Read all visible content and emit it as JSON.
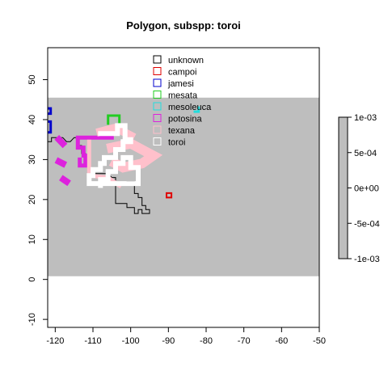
{
  "chart_data": {
    "type": "map-polygon",
    "title": "Polygon, subspp: toroi",
    "xlim": [
      -122,
      -50
    ],
    "ylim": [
      -12,
      58
    ],
    "x_ticks": [
      -120,
      -110,
      -100,
      -90,
      -80,
      -70,
      -60,
      -50
    ],
    "y_ticks": [
      -10,
      0,
      10,
      20,
      30,
      40,
      50
    ],
    "background": {
      "color": "#bebebe",
      "ymin": 0.8,
      "ymax": 45.5
    },
    "legend": {
      "position": "top-center",
      "entries": [
        {
          "name": "unknown",
          "color": "#000000"
        },
        {
          "name": "campoi",
          "color": "#df0000"
        },
        {
          "name": "jamesi",
          "color": "#0000cc"
        },
        {
          "name": "mesata",
          "color": "#22cc22"
        },
        {
          "name": "mesoleuca",
          "color": "#22dddd"
        },
        {
          "name": "potosina",
          "color": "#dd22dd"
        },
        {
          "name": "texana",
          "color": "#ffc0cb"
        },
        {
          "name": "toroi",
          "color": "#ffffff"
        }
      ]
    },
    "colorbar": {
      "color": "#bebebe",
      "ticks": [
        {
          "label": "1e-03",
          "value": 0.001
        },
        {
          "label": "5e-04",
          "value": 0.0005
        },
        {
          "label": "0e+00",
          "value": 0
        },
        {
          "label": "-5e-04",
          "value": -0.0005
        },
        {
          "label": "-1e-03",
          "value": -0.001
        }
      ]
    },
    "series": [
      {
        "name": "unknown",
        "color": "#000000",
        "width": 1,
        "points": [
          [
            -122,
            34.5
          ],
          [
            -121,
            34.5
          ],
          [
            -121,
            35.5
          ],
          [
            -119,
            35.5
          ],
          [
            -118,
            35.5
          ],
          [
            -117,
            34.5
          ],
          [
            -116,
            34.5
          ],
          [
            -115,
            35.5
          ],
          [
            -114,
            35.5
          ],
          [
            -114,
            33.5
          ],
          [
            -113,
            33.5
          ],
          [
            -113,
            31.5
          ],
          [
            -112,
            31.5
          ],
          [
            -112,
            29.5
          ],
          [
            -111,
            29.5
          ],
          [
            -111,
            27.5
          ],
          [
            -110,
            27.5
          ],
          [
            -110,
            26.5
          ],
          [
            -108,
            26.5
          ],
          [
            -106,
            26.5
          ],
          [
            -105,
            25.5
          ],
          [
            -104,
            25.5
          ],
          [
            -104,
            23.5
          ],
          [
            -104,
            22.5
          ],
          [
            -104,
            19
          ],
          [
            -101,
            19
          ],
          [
            -101,
            18
          ],
          [
            -99,
            18
          ],
          [
            -99,
            16.5
          ],
          [
            -98,
            16.5
          ],
          [
            -98,
            17.5
          ],
          [
            -97,
            17.5
          ],
          [
            -97,
            16.5
          ],
          [
            -95,
            16.5
          ],
          [
            -95,
            17.5
          ],
          [
            -96,
            17.5
          ],
          [
            -96,
            18.5
          ],
          [
            -97,
            18.5
          ],
          [
            -97,
            20.5
          ],
          [
            -98,
            20.5
          ],
          [
            -98,
            21.5
          ],
          [
            -99,
            21.5
          ],
          [
            -99,
            24.5
          ],
          [
            -100,
            24.5
          ],
          [
            -101,
            24.5
          ]
        ]
      },
      {
        "name": "campoi",
        "color": "#df0000",
        "width": 2,
        "points": [
          [
            -90.5,
            20.5
          ],
          [
            -89.2,
            20.5
          ],
          [
            -89.2,
            21.6
          ],
          [
            -90.5,
            21.6
          ],
          [
            -90.5,
            20.5
          ]
        ]
      },
      {
        "name": "jamesi",
        "color": "#0000cc",
        "width": 3,
        "points": [
          [
            -122,
            41.5
          ],
          [
            -121.2,
            41.5
          ],
          [
            -121.2,
            42.8
          ],
          [
            -122,
            42.8
          ]
        ]
      },
      {
        "name": "jamesi",
        "color": "#0000cc",
        "width": 3,
        "points": [
          [
            -122,
            36.8
          ],
          [
            -121.2,
            36.8
          ],
          [
            -121.2,
            39.5
          ],
          [
            -122,
            39.5
          ]
        ]
      },
      {
        "name": "mesata",
        "color": "#22cc22",
        "width": 3,
        "points": [
          [
            -106,
            39
          ],
          [
            -106,
            41
          ],
          [
            -103,
            41
          ],
          [
            -103,
            39
          ]
        ]
      },
      {
        "name": "mesoleuca",
        "color": "#22dddd",
        "width": 3,
        "points": [
          [
            -83,
            42
          ],
          [
            -82,
            42
          ],
          [
            -82,
            43
          ]
        ]
      },
      {
        "name": "potosina",
        "color": "#dd22dd",
        "width": 5,
        "points": [
          [
            -105,
            35.5
          ],
          [
            -114,
            35.5
          ],
          [
            -114,
            33
          ],
          [
            -112.5,
            33
          ],
          [
            -112.5,
            31
          ],
          [
            -112,
            31
          ],
          [
            -112,
            28.5
          ],
          [
            -113.5,
            28.5
          ],
          [
            -113.5,
            30
          ]
        ]
      },
      {
        "name": "potosina",
        "color": "#dd22dd",
        "width": 8,
        "points": [
          [
            -119,
            35
          ],
          [
            -118,
            34
          ]
        ]
      },
      {
        "name": "potosina",
        "color": "#dd22dd",
        "width": 8,
        "points": [
          [
            -119,
            29.5
          ],
          [
            -118,
            29
          ]
        ]
      },
      {
        "name": "potosina",
        "color": "#dd22dd",
        "width": 8,
        "points": [
          [
            -117.8,
            25
          ],
          [
            -117,
            24.5
          ]
        ]
      },
      {
        "name": "texana",
        "color": "#ffc0cb",
        "width": 5,
        "points": [
          [
            -111,
            34.5
          ],
          [
            -111,
            26
          ],
          [
            -106,
            25.5
          ],
          [
            -103,
            23.5
          ]
        ]
      },
      {
        "name": "texana",
        "color": "#ffc0cb",
        "width": 12,
        "points": [
          [
            -105,
            33
          ],
          [
            -100,
            34
          ],
          [
            -96,
            32
          ],
          [
            -94,
            31
          ],
          [
            -97,
            29
          ],
          [
            -102,
            28
          ],
          [
            -104,
            29
          ]
        ]
      },
      {
        "name": "texana",
        "color": "#ffc0cb",
        "width": 10,
        "points": [
          [
            -108,
            37
          ],
          [
            -104,
            38
          ],
          [
            -100,
            36
          ]
        ]
      },
      {
        "name": "toroi",
        "color": "#ffffff",
        "width": 6,
        "points": [
          [
            -108,
            36.5
          ],
          [
            -103.5,
            36.5
          ],
          [
            -103.5,
            38.5
          ],
          [
            -101.5,
            38.5
          ],
          [
            -101.5,
            35
          ],
          [
            -100,
            35
          ],
          [
            -100,
            34.5
          ],
          [
            -102,
            34.5
          ],
          [
            -102,
            32.5
          ],
          [
            -104,
            32.5
          ],
          [
            -104,
            30.5
          ],
          [
            -107,
            30.5
          ],
          [
            -107,
            29
          ],
          [
            -108,
            29
          ],
          [
            -108,
            27.5
          ],
          [
            -110,
            27.5
          ],
          [
            -110,
            26
          ],
          [
            -111,
            26
          ],
          [
            -111,
            24
          ],
          [
            -110,
            24
          ],
          [
            -98,
            24
          ],
          [
            -98,
            28
          ],
          [
            -100,
            28
          ],
          [
            -100,
            30.5
          ],
          [
            -102,
            30.5
          ],
          [
            -102,
            29
          ],
          [
            -104,
            29
          ],
          [
            -104,
            27
          ],
          [
            -106,
            27
          ],
          [
            -106,
            25
          ],
          [
            -108,
            25
          ],
          [
            -108,
            23.5
          ]
        ]
      }
    ]
  }
}
